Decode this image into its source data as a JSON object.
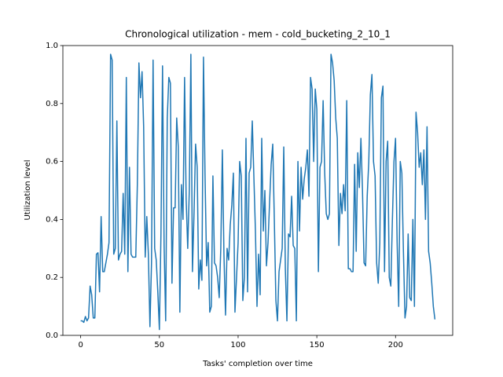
{
  "chart_data": {
    "type": "line",
    "title": "Chronological utilization - mem - cold_bucketing_2_10_1",
    "x_label": "Tasks' completion over time",
    "y_label": "Utilization level",
    "color": "#1f77b4",
    "xlim": [
      -11.3,
      236.3
    ],
    "xticks": [
      0,
      50,
      100,
      150,
      200
    ],
    "ylim": [
      0,
      1
    ],
    "yticks": [
      {
        "value": 0,
        "label": "0.0"
      },
      {
        "value": 0.2,
        "label": "0.2"
      },
      {
        "value": 0.4,
        "label": "0.4"
      },
      {
        "value": 0.6,
        "label": "0.6"
      },
      {
        "value": 0.8,
        "label": "0.8"
      },
      {
        "value": 1,
        "label": "1.0"
      }
    ],
    "values": [
      0.05,
      0.05,
      0.045,
      0.065,
      0.05,
      0.06,
      0.17,
      0.14,
      0.06,
      0.06,
      0.28,
      0.285,
      0.15,
      0.41,
      0.22,
      0.22,
      0.25,
      0.28,
      0.32,
      0.97,
      0.95,
      0.28,
      0.3,
      0.74,
      0.26,
      0.28,
      0.29,
      0.49,
      0.28,
      0.89,
      0.22,
      0.58,
      0.28,
      0.27,
      0.27,
      0.27,
      0.52,
      0.94,
      0.82,
      0.91,
      0.72,
      0.27,
      0.41,
      0.28,
      0.03,
      0.25,
      0.95,
      0.3,
      0.26,
      0.15,
      0.02,
      0.35,
      0.93,
      0.31,
      0.05,
      0.75,
      0.89,
      0.87,
      0.18,
      0.44,
      0.44,
      0.75,
      0.65,
      0.08,
      0.52,
      0.4,
      0.89,
      0.47,
      0.3,
      0.5,
      0.97,
      0.22,
      0.42,
      0.66,
      0.58,
      0.16,
      0.26,
      0.19,
      0.96,
      0.55,
      0.24,
      0.32,
      0.08,
      0.1,
      0.55,
      0.25,
      0.24,
      0.2,
      0.13,
      0.3,
      0.64,
      0.28,
      0.07,
      0.3,
      0.26,
      0.38,
      0.45,
      0.56,
      0.08,
      0.2,
      0.32,
      0.6,
      0.55,
      0.12,
      0.2,
      0.68,
      0.15,
      0.56,
      0.58,
      0.74,
      0.55,
      0.36,
      0.1,
      0.28,
      0.14,
      0.68,
      0.36,
      0.5,
      0.24,
      0.32,
      0.46,
      0.59,
      0.66,
      0.4,
      0.12,
      0.05,
      0.22,
      0.26,
      0.3,
      0.65,
      0.23,
      0.05,
      0.35,
      0.34,
      0.48,
      0.31,
      0.3,
      0.05,
      0.6,
      0.36,
      0.58,
      0.47,
      0.54,
      0.58,
      0.64,
      0.48,
      0.89,
      0.85,
      0.6,
      0.85,
      0.78,
      0.22,
      0.58,
      0.6,
      0.81,
      0.56,
      0.42,
      0.4,
      0.42,
      0.97,
      0.94,
      0.88,
      0.75,
      0.68,
      0.31,
      0.49,
      0.42,
      0.52,
      0.43,
      0.81,
      0.23,
      0.23,
      0.22,
      0.22,
      0.59,
      0.29,
      0.63,
      0.51,
      0.68,
      0.5,
      0.25,
      0.24,
      0.48,
      0.6,
      0.83,
      0.9,
      0.6,
      0.55,
      0.25,
      0.18,
      0.32,
      0.82,
      0.86,
      0.22,
      0.6,
      0.67,
      0.2,
      0.17,
      0.4,
      0.6,
      0.68,
      0.32,
      0.1,
      0.6,
      0.56,
      0.29,
      0.06,
      0.1,
      0.35,
      0.13,
      0.12,
      0.4,
      0.1,
      0.77,
      0.7,
      0.58,
      0.63,
      0.52,
      0.64,
      0.4,
      0.72,
      0.29,
      0.25,
      0.18,
      0.1,
      0.055
    ]
  }
}
